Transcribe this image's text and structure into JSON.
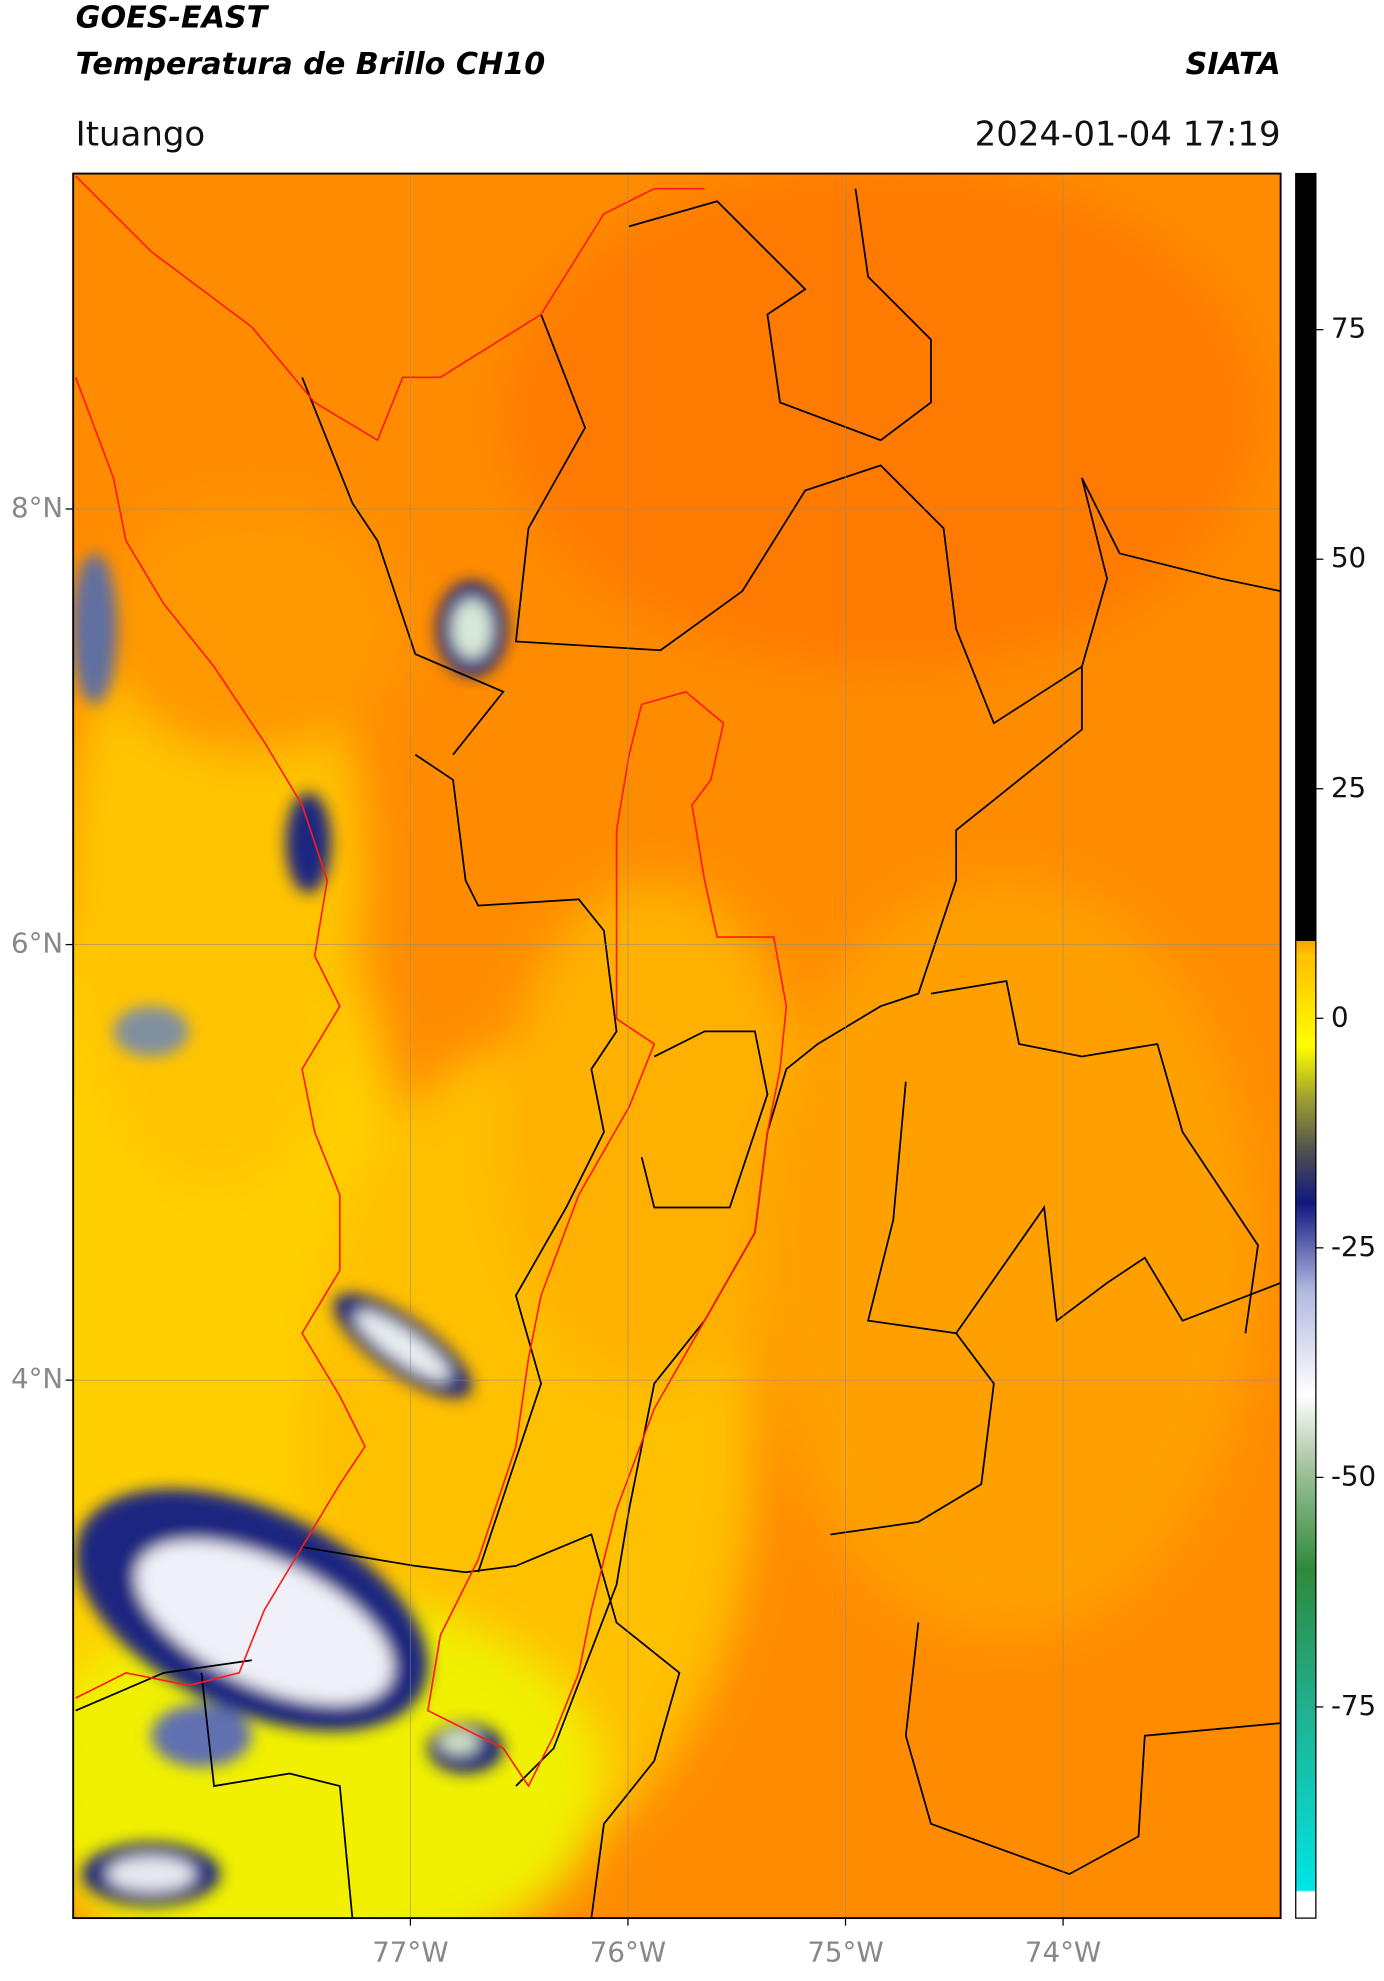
{
  "header": {
    "title_line1": "GOES-EAST",
    "title_line2": "Temperatura de Brillo CH10",
    "agency": "SIATA",
    "location": "Ituango",
    "datetime": "2024-01-04 17:19"
  },
  "map": {
    "lon_range": [
      -78.55,
      -73.0
    ],
    "lat_range": [
      1.53,
      9.54
    ],
    "lon_ticks": [
      {
        "value": -77,
        "label": "77°W"
      },
      {
        "value": -76,
        "label": "76°W"
      },
      {
        "value": -75,
        "label": "75°W"
      },
      {
        "value": -74,
        "label": "74°W"
      }
    ],
    "lat_ticks": [
      {
        "value": 8,
        "label": "8°N"
      },
      {
        "value": 6,
        "label": "6°N"
      },
      {
        "value": 4,
        "label": "4°N"
      }
    ],
    "grid": true
  },
  "colorbar": {
    "range": [
      -98,
      92
    ],
    "ticks": [
      75,
      50,
      25,
      0,
      -25,
      -50,
      -75
    ]
  }
}
